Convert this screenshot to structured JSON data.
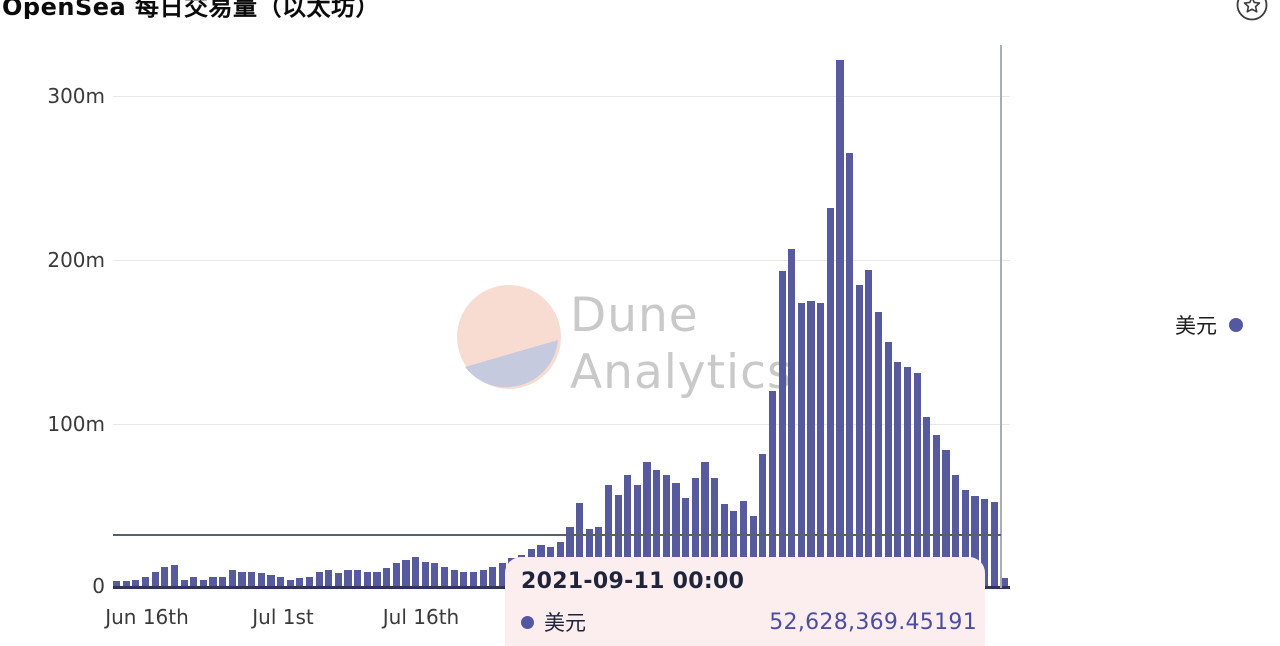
{
  "page": {
    "title": "OpenSea 每日交易量（以太坊）",
    "favorite_icon": "star-circle-icon"
  },
  "watermark": {
    "line1": "Dune",
    "line2": "Analytics"
  },
  "legend": {
    "label": "美元",
    "color": "#5457a1"
  },
  "tooltip": {
    "date": "2021-09-11 00:00",
    "series": "美元",
    "value": "52,628,369.45191"
  },
  "axes": {
    "y_ticks": {
      "t300": "300m",
      "t200": "200m",
      "t100": "100m",
      "t0": "0"
    },
    "x_ticks": {
      "jun16": "Jun 16th",
      "jul1": "Jul 1st",
      "jul16": "Jul 16th"
    }
  },
  "colors": {
    "bar": "#575a9d",
    "tooltip_bg": "#fcedee",
    "tooltip_value": "#4a4da0",
    "gridline": "#e8e8e8",
    "watermark_pink": "#f8dcd2",
    "watermark_lavender": "#c6cade"
  },
  "chart_data": {
    "type": "bar",
    "title": "OpenSea 每日交易量（以太坊）",
    "series_name": "美元",
    "unit": "USD (m = millions)",
    "ylabel": "",
    "xlabel": "",
    "ylim": [
      0,
      334
    ],
    "y_tick_values": [
      0,
      100,
      200,
      300
    ],
    "y_tick_labels": [
      "0",
      "100m",
      "200m",
      "300m"
    ],
    "x_tick_labels": [
      "Jun 16th",
      "Jul 1st",
      "Jul 16th"
    ],
    "grid": "horizontal",
    "legend_position": "right",
    "hovered_point": {
      "date": "2021-09-11 00:00",
      "value_text": "52,628,369.45191",
      "value_millions": 52.63
    },
    "dates": [
      "2021-06-12",
      "2021-06-13",
      "2021-06-14",
      "2021-06-15",
      "2021-06-16",
      "2021-06-17",
      "2021-06-18",
      "2021-06-19",
      "2021-06-20",
      "2021-06-21",
      "2021-06-22",
      "2021-06-23",
      "2021-06-24",
      "2021-06-25",
      "2021-06-26",
      "2021-06-27",
      "2021-06-28",
      "2021-06-29",
      "2021-06-30",
      "2021-07-01",
      "2021-07-02",
      "2021-07-03",
      "2021-07-04",
      "2021-07-05",
      "2021-07-06",
      "2021-07-07",
      "2021-07-08",
      "2021-07-09",
      "2021-07-10",
      "2021-07-11",
      "2021-07-12",
      "2021-07-13",
      "2021-07-14",
      "2021-07-15",
      "2021-07-16",
      "2021-07-17",
      "2021-07-18",
      "2021-07-19",
      "2021-07-20",
      "2021-07-21",
      "2021-07-22",
      "2021-07-23",
      "2021-07-24",
      "2021-07-25",
      "2021-07-26",
      "2021-07-27",
      "2021-07-28",
      "2021-07-29",
      "2021-07-30",
      "2021-07-31",
      "2021-08-01",
      "2021-08-02",
      "2021-08-03",
      "2021-08-04",
      "2021-08-05",
      "2021-08-06",
      "2021-08-07",
      "2021-08-08",
      "2021-08-09",
      "2021-08-10",
      "2021-08-11",
      "2021-08-12",
      "2021-08-13",
      "2021-08-14",
      "2021-08-15",
      "2021-08-16",
      "2021-08-17",
      "2021-08-18",
      "2021-08-19",
      "2021-08-20",
      "2021-08-21",
      "2021-08-22",
      "2021-08-23",
      "2021-08-24",
      "2021-08-25",
      "2021-08-26",
      "2021-08-27",
      "2021-08-28",
      "2021-08-29",
      "2021-08-30",
      "2021-08-31",
      "2021-09-01",
      "2021-09-02",
      "2021-09-03",
      "2021-09-04",
      "2021-09-05",
      "2021-09-06",
      "2021-09-07",
      "2021-09-08",
      "2021-09-09",
      "2021-09-10",
      "2021-09-11",
      "2021-09-12"
    ],
    "values": [
      4,
      4,
      5,
      7,
      10,
      13,
      14,
      5,
      7,
      5,
      7,
      7,
      11,
      10,
      10,
      9,
      8,
      7,
      5,
      6,
      7,
      10,
      11,
      9,
      11,
      11,
      10,
      10,
      12,
      15,
      17,
      19,
      16,
      15,
      13,
      11,
      10,
      10,
      11,
      13,
      15,
      18,
      20,
      24,
      26,
      25,
      28,
      37,
      52,
      36,
      37,
      63,
      57,
      69,
      63,
      77,
      72,
      69,
      64,
      55,
      67,
      77,
      67,
      51,
      47,
      53,
      44,
      82,
      120,
      193,
      207,
      174,
      175,
      174,
      232,
      322,
      265,
      185,
      194,
      168,
      150,
      138,
      135,
      131,
      104,
      93,
      84,
      69,
      60,
      56,
      54,
      52.63,
      6
    ]
  }
}
